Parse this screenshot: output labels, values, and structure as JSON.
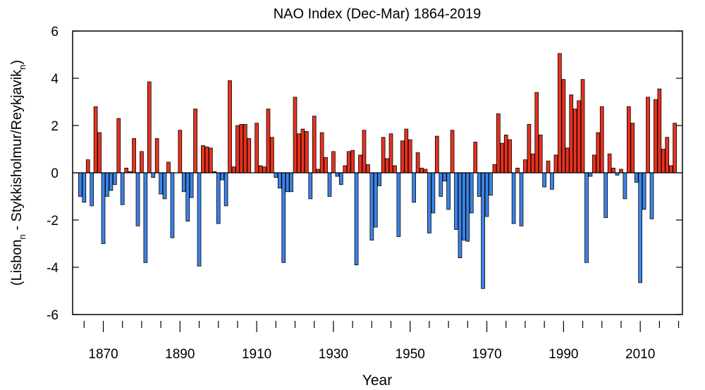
{
  "chart_data": {
    "type": "bar",
    "title": "NAO Index (Dec-Mar) 1864-2019",
    "xlabel": "Year",
    "ylabel_parts": [
      "(Lisbon",
      "n",
      " - Stykkisholmur/Reykjavik",
      "n",
      ")"
    ],
    "xlim": [
      1862,
      2021
    ],
    "ylim": [
      -6,
      6
    ],
    "yticks": [
      -6,
      -4,
      -2,
      0,
      2,
      4,
      6
    ],
    "ytick_labels": [
      "-6",
      "-4",
      "-2",
      "0",
      "2",
      "4",
      "6"
    ],
    "xticks_major": [
      1870,
      1890,
      1910,
      1930,
      1950,
      1970,
      1990,
      2010
    ],
    "xtick_labels": [
      "1870",
      "1890",
      "1910",
      "1930",
      "1950",
      "1970",
      "1990",
      "2010"
    ],
    "xticks_minor_step": 5,
    "grid": false,
    "colors": {
      "positive": "#e8321e",
      "negative": "#3d83e6",
      "outline": "#000000"
    },
    "x": [
      1864,
      1865,
      1866,
      1867,
      1868,
      1869,
      1870,
      1871,
      1872,
      1873,
      1874,
      1875,
      1876,
      1877,
      1878,
      1879,
      1880,
      1881,
      1882,
      1883,
      1884,
      1885,
      1886,
      1887,
      1888,
      1889,
      1890,
      1891,
      1892,
      1893,
      1894,
      1895,
      1896,
      1897,
      1898,
      1899,
      1900,
      1901,
      1902,
      1903,
      1904,
      1905,
      1906,
      1907,
      1908,
      1909,
      1910,
      1911,
      1912,
      1913,
      1914,
      1915,
      1916,
      1917,
      1918,
      1919,
      1920,
      1921,
      1922,
      1923,
      1924,
      1925,
      1926,
      1927,
      1928,
      1929,
      1930,
      1931,
      1932,
      1933,
      1934,
      1935,
      1936,
      1937,
      1938,
      1939,
      1940,
      1941,
      1942,
      1943,
      1944,
      1945,
      1946,
      1947,
      1948,
      1949,
      1950,
      1951,
      1952,
      1953,
      1954,
      1955,
      1956,
      1957,
      1958,
      1959,
      1960,
      1961,
      1962,
      1963,
      1964,
      1965,
      1966,
      1967,
      1968,
      1969,
      1970,
      1971,
      1972,
      1973,
      1974,
      1975,
      1976,
      1977,
      1978,
      1979,
      1980,
      1981,
      1982,
      1983,
      1984,
      1985,
      1986,
      1987,
      1988,
      1989,
      1990,
      1991,
      1992,
      1993,
      1994,
      1995,
      1996,
      1997,
      1998,
      1999,
      2000,
      2001,
      2002,
      2003,
      2004,
      2005,
      2006,
      2007,
      2008,
      2009,
      2010,
      2011,
      2012,
      2013,
      2014,
      2015,
      2016,
      2017,
      2018,
      2019
    ],
    "values": [
      -1.0,
      -1.25,
      0.55,
      -1.4,
      2.8,
      1.7,
      -3.0,
      -1.0,
      -0.75,
      -0.5,
      2.3,
      -1.35,
      0.2,
      0.05,
      1.45,
      -2.25,
      0.9,
      -3.8,
      3.85,
      -0.2,
      1.45,
      -0.9,
      -1.1,
      0.45,
      -2.75,
      0.0,
      1.8,
      -0.8,
      -2.05,
      -1.05,
      2.7,
      -3.95,
      1.15,
      1.1,
      1.05,
      0.05,
      -2.15,
      -0.3,
      -1.4,
      3.9,
      0.25,
      2.0,
      2.05,
      2.05,
      1.45,
      0.0,
      2.1,
      0.3,
      0.25,
      2.7,
      1.5,
      -0.2,
      -0.65,
      -3.8,
      -0.8,
      -0.8,
      3.2,
      1.65,
      1.85,
      1.75,
      -1.1,
      2.4,
      0.15,
      1.7,
      0.65,
      -1.0,
      0.9,
      -0.15,
      -0.5,
      0.3,
      0.9,
      0.95,
      -3.9,
      0.75,
      1.8,
      0.35,
      -2.85,
      -2.3,
      -0.55,
      1.5,
      0.6,
      1.65,
      0.3,
      -2.7,
      1.35,
      1.85,
      1.4,
      -1.25,
      0.85,
      0.2,
      0.15,
      -2.55,
      -1.7,
      1.55,
      -1.0,
      -0.35,
      -1.55,
      1.8,
      -2.4,
      -3.6,
      -2.85,
      -2.9,
      -1.7,
      1.3,
      -1.0,
      -4.9,
      -1.85,
      -0.95,
      0.35,
      2.5,
      1.25,
      1.6,
      1.4,
      -2.15,
      0.2,
      -2.25,
      0.55,
      2.05,
      0.8,
      3.4,
      1.6,
      -0.6,
      0.5,
      -0.7,
      0.75,
      5.05,
      3.95,
      1.05,
      3.3,
      2.7,
      3.05,
      3.95,
      -3.8,
      -0.15,
      0.75,
      1.7,
      2.8,
      -1.9,
      0.8,
      0.2,
      -0.1,
      0.15,
      -1.1,
      2.8,
      2.1,
      -0.4,
      -4.65,
      -1.55,
      3.2,
      -1.95,
      3.1,
      3.55,
      1.0,
      1.5,
      0.3,
      2.1
    ]
  }
}
